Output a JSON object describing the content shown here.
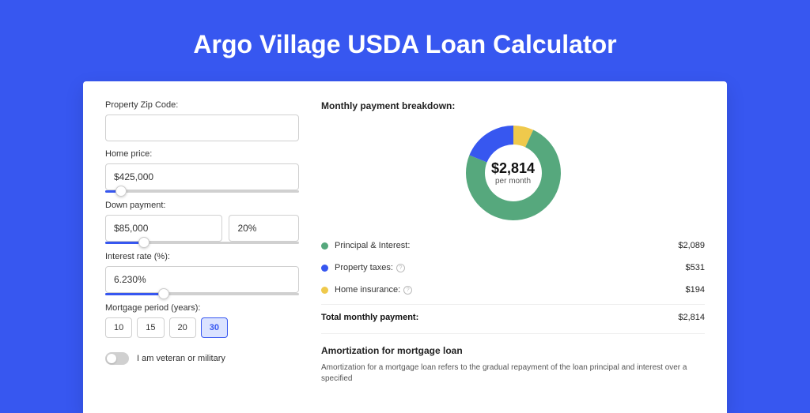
{
  "page": {
    "title": "Argo Village USDA Loan Calculator",
    "bg_color": "#3757f0",
    "card_bg": "#ffffff"
  },
  "inputs": {
    "zip": {
      "label": "Property Zip Code:",
      "value": ""
    },
    "home_price": {
      "label": "Home price:",
      "value": "$425,000",
      "slider_pct": 8
    },
    "down_payment": {
      "label": "Down payment:",
      "amount": "$85,000",
      "percent": "20%",
      "slider_pct": 20
    },
    "interest_rate": {
      "label": "Interest rate (%):",
      "value": "6.230%",
      "slider_pct": 30
    },
    "mortgage_period": {
      "label": "Mortgage period (years):",
      "options": [
        "10",
        "15",
        "20",
        "30"
      ],
      "selected": "30"
    },
    "veteran": {
      "label": "I am veteran or military",
      "value": false
    }
  },
  "breakdown": {
    "title": "Monthly payment breakdown:",
    "donut": {
      "type": "donut",
      "center_amount": "$2,814",
      "center_sub": "per month",
      "slices": [
        {
          "label": "Principal & Interest:",
          "value": "$2,089",
          "color": "#56a87d",
          "pct": 74.2
        },
        {
          "label": "Property taxes:",
          "value": "$531",
          "color": "#3757f0",
          "pct": 18.9,
          "info": true
        },
        {
          "label": "Home insurance:",
          "value": "$194",
          "color": "#efc94c",
          "pct": 6.9,
          "info": true
        }
      ],
      "ring_width": 24,
      "size": 128,
      "bg": "#ffffff"
    },
    "total": {
      "label": "Total monthly payment:",
      "value": "$2,814"
    }
  },
  "amortization": {
    "title": "Amortization for mortgage loan",
    "text": "Amortization for a mortgage loan refers to the gradual repayment of the loan principal and interest over a specified"
  }
}
